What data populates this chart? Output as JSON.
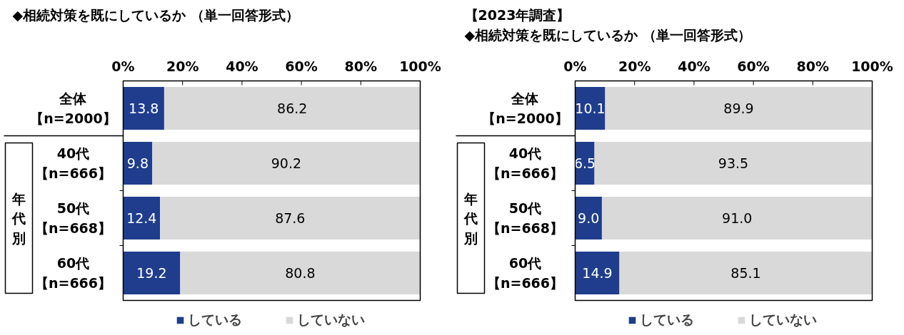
{
  "chart_data": [
    {
      "type": "bar",
      "orientation": "horizontal",
      "stacked": true,
      "title": "◆相続対策を既にしているか （単一回答形式）",
      "categories": [
        "全体【n=2000】",
        "40代【n=666】",
        "50代【n=668】",
        "60代【n=666】"
      ],
      "series": [
        {
          "name": "している",
          "color": "#1f3d8c",
          "values": [
            13.8,
            9.8,
            12.4,
            19.2
          ]
        },
        {
          "name": "していない",
          "color": "#d9d9d9",
          "values": [
            86.2,
            90.2,
            87.6,
            80.8
          ]
        }
      ],
      "xlim": [
        0,
        100
      ],
      "xticks": [
        {
          "value": 0,
          "label": "0%"
        },
        {
          "value": 20,
          "label": "20%"
        },
        {
          "value": 40,
          "label": "40%"
        },
        {
          "value": 60,
          "label": "60%"
        },
        {
          "value": 80,
          "label": "80%"
        },
        {
          "value": 100,
          "label": "100%"
        }
      ],
      "data_labels": true,
      "legend": "bottom",
      "annotations": [
        "年代別"
      ]
    },
    {
      "type": "bar",
      "orientation": "horizontal",
      "stacked": true,
      "title": "【2023年調査】",
      "subtitle": "◆相続対策を既にしているか （単一回答形式）",
      "categories": [
        "全体【n=2000】",
        "40代【n=666】",
        "50代【n=668】",
        "60代【n=666】"
      ],
      "series": [
        {
          "name": "している",
          "color": "#1f3d8c",
          "values": [
            10.1,
            6.5,
            9.0,
            14.9
          ],
          "value_labels": [
            "10.1",
            "6.5",
            "9.0",
            "14.9"
          ]
        },
        {
          "name": "していない",
          "color": "#d9d9d9",
          "values": [
            89.9,
            93.5,
            91.0,
            85.1
          ],
          "value_labels": [
            "89.9",
            "93.5",
            "91.0",
            "85.1"
          ]
        }
      ],
      "xlim": [
        0,
        100
      ],
      "xticks": [
        {
          "value": 0,
          "label": "0%"
        },
        {
          "value": 20,
          "label": "20%"
        },
        {
          "value": 40,
          "label": "40%"
        },
        {
          "value": 60,
          "label": "60%"
        },
        {
          "value": 80,
          "label": "80%"
        },
        {
          "value": 100,
          "label": "100%"
        }
      ],
      "legend": "bottom",
      "annotations": [
        "年代別"
      ]
    }
  ]
}
